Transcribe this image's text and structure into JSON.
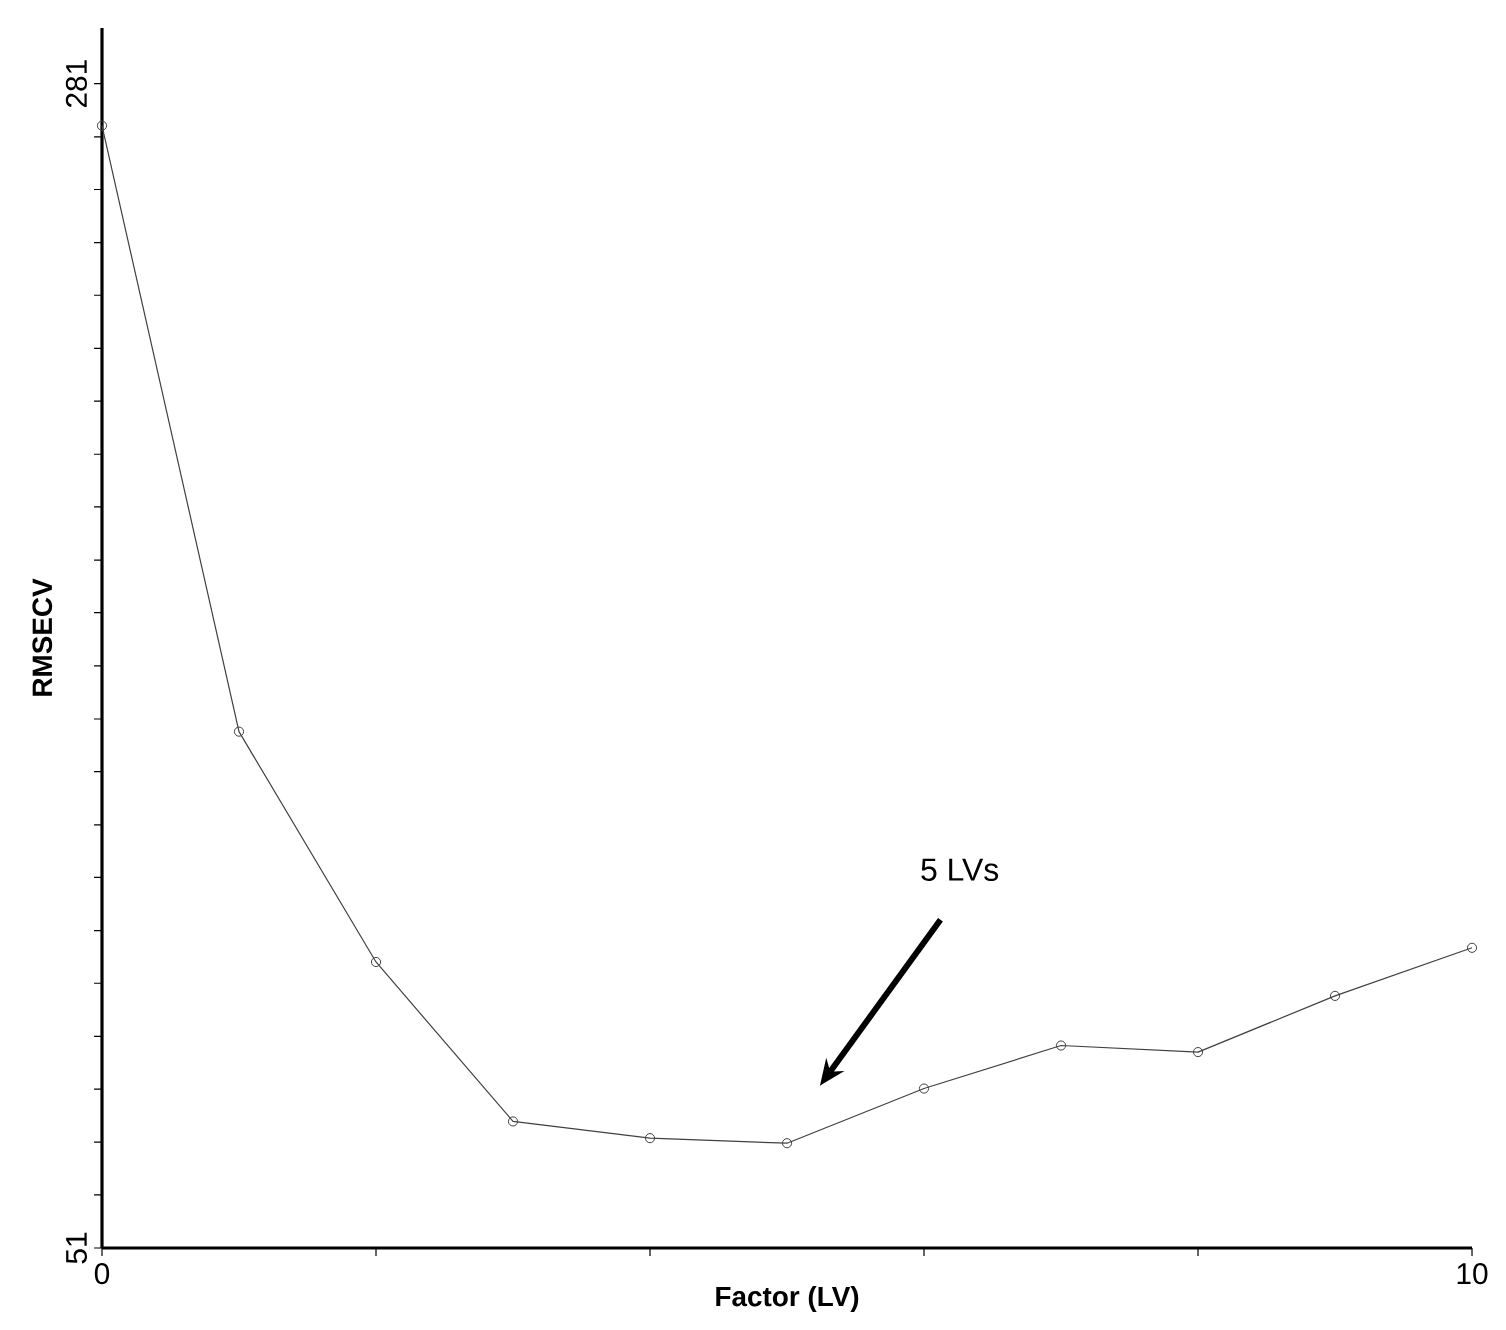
{
  "chart_data": {
    "type": "line",
    "xlabel": "Factor (LV)",
    "ylabel": "RMSECV",
    "x": [
      0,
      1,
      2,
      3,
      4,
      5,
      6,
      7,
      8,
      9,
      10
    ],
    "series": [
      {
        "color": "#404040",
        "values": [
          272.7,
          153,
          107.5,
          76,
          72.7,
          71.7,
          82.5,
          91,
          89.7,
          100.8,
          110.3
        ]
      }
    ],
    "xlim": [
      0,
      10
    ],
    "ylim": [
      51,
      292
    ],
    "xticks": [
      0,
      {
        "value": 2,
        "label": null
      },
      {
        "value": 4,
        "label": null
      },
      {
        "value": 6,
        "label": null
      },
      {
        "value": 8,
        "label": null
      },
      10
    ],
    "yticks": [
      51,
      {
        "value": 61.5,
        "label": null
      },
      {
        "value": 71.9,
        "label": null
      },
      {
        "value": 82.4,
        "label": null
      },
      {
        "value": 92.8,
        "label": null
      },
      {
        "value": 103.3,
        "label": null
      },
      {
        "value": 113.7,
        "label": null
      },
      {
        "value": 124.2,
        "label": null
      },
      {
        "value": 134.6,
        "label": null
      },
      {
        "value": 145.1,
        "label": null
      },
      {
        "value": 155.5,
        "label": null
      },
      {
        "value": 166,
        "label": null
      },
      {
        "value": 176.5,
        "label": null
      },
      {
        "value": 186.9,
        "label": null
      },
      {
        "value": 197.4,
        "label": null
      },
      {
        "value": 207.8,
        "label": null
      },
      {
        "value": 218.3,
        "label": null
      },
      {
        "value": 228.7,
        "label": null
      },
      {
        "value": 239.2,
        "label": null
      },
      {
        "value": 249.6,
        "label": null
      },
      {
        "value": 260.1,
        "label": null
      },
      {
        "value": 270.5,
        "label": null
      },
      281
    ],
    "annotations": [
      "5 LVs"
    ],
    "grid": false,
    "legend": false,
    "marker": "circle",
    "line_style": "solid"
  }
}
